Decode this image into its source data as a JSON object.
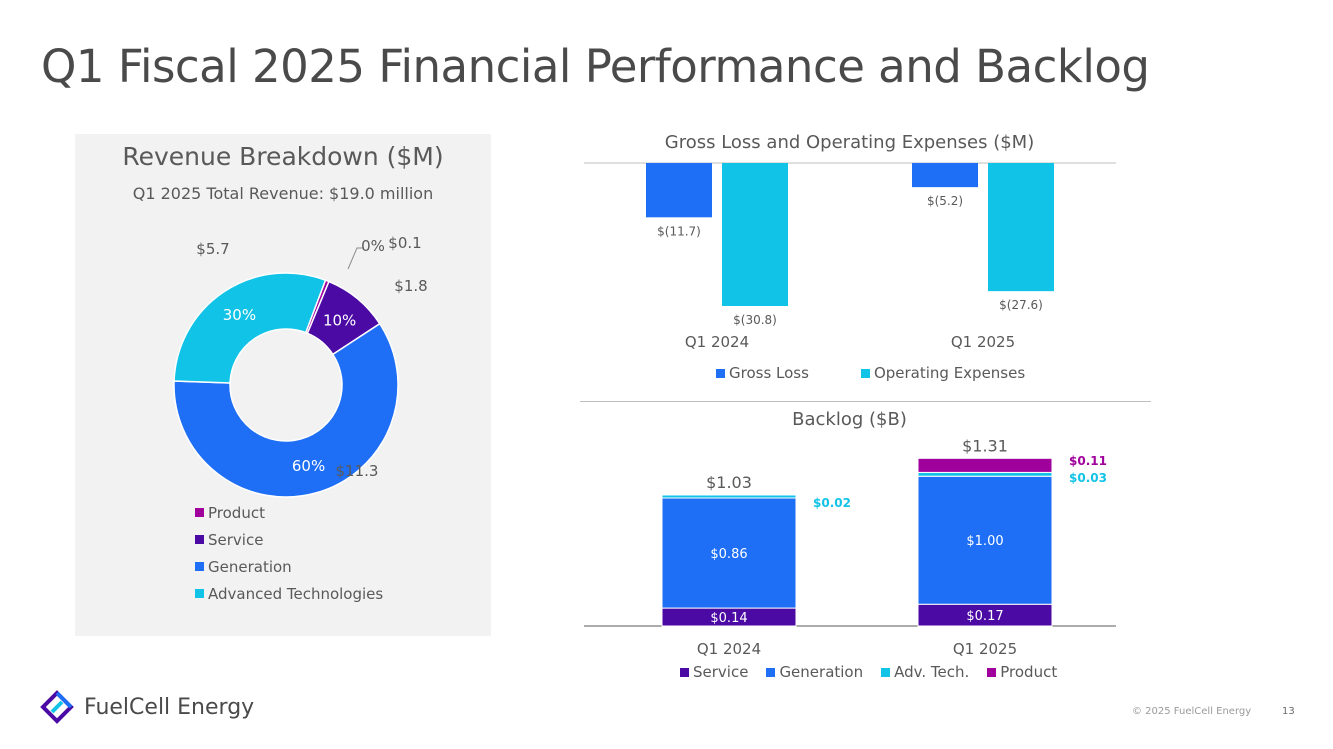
{
  "slide": {
    "title": "Q1 Fiscal 2025 Financial Performance and Backlog",
    "copyright": "© 2025 FuelCell Energy",
    "page_number": "13",
    "company": "FuelCell Energy"
  },
  "colors": {
    "product": "#a0009c",
    "service": "#4b0aa3",
    "generation": "#1e6ff5",
    "advanced_technologies": "#12c3e8",
    "gross_loss": "#1e6ff5",
    "operating_expenses": "#12c3e8"
  },
  "chart_data": [
    {
      "type": "pie",
      "title": "Revenue Breakdown ($M)",
      "subtitle": "Q1 2025 Total Revenue: $19.0 million",
      "labels": [
        "Product",
        "Service",
        "Generation",
        "Advanced Technologies"
      ],
      "values": [
        0.1,
        1.8,
        11.3,
        5.7
      ],
      "value_labels": [
        "$0.1",
        "$1.8",
        "$11.3",
        "$5.7"
      ],
      "percent_labels": [
        "0%",
        "10%",
        "60%",
        "30%"
      ],
      "legend": [
        "Product",
        "Service",
        "Generation",
        "Advanced Technologies"
      ]
    },
    {
      "type": "bar",
      "title": "Gross Loss and Operating Expenses ($M)",
      "categories": [
        "Q1 2024",
        "Q1 2025"
      ],
      "series": [
        {
          "name": "Gross Loss",
          "values": [
            -11.7,
            -5.2
          ],
          "labels": [
            "$(11.7)",
            "$(5.2)"
          ]
        },
        {
          "name": "Operating Expenses",
          "values": [
            -30.8,
            -27.6
          ],
          "labels": [
            "$(30.8)",
            "$(27.6)"
          ]
        }
      ],
      "ylim": [
        -35,
        0
      ]
    },
    {
      "type": "bar",
      "stacked": true,
      "title": "Backlog ($B)",
      "categories": [
        "Q1 2024",
        "Q1 2025"
      ],
      "totals": [
        "$1.03",
        "$1.31"
      ],
      "series": [
        {
          "name": "Service",
          "values": [
            0.14,
            0.17
          ],
          "labels": [
            "$0.14",
            "$0.17"
          ]
        },
        {
          "name": "Generation",
          "values": [
            0.86,
            1.0
          ],
          "labels": [
            "$0.86",
            "$1.00"
          ]
        },
        {
          "name": "Adv. Tech.",
          "values": [
            0.02,
            0.03
          ],
          "labels": [
            "$0.02",
            "$0.03"
          ]
        },
        {
          "name": "Product",
          "values": [
            0.0,
            0.11
          ],
          "labels": [
            "",
            "$0.11"
          ]
        }
      ],
      "ylim": [
        0,
        1.45
      ]
    }
  ]
}
